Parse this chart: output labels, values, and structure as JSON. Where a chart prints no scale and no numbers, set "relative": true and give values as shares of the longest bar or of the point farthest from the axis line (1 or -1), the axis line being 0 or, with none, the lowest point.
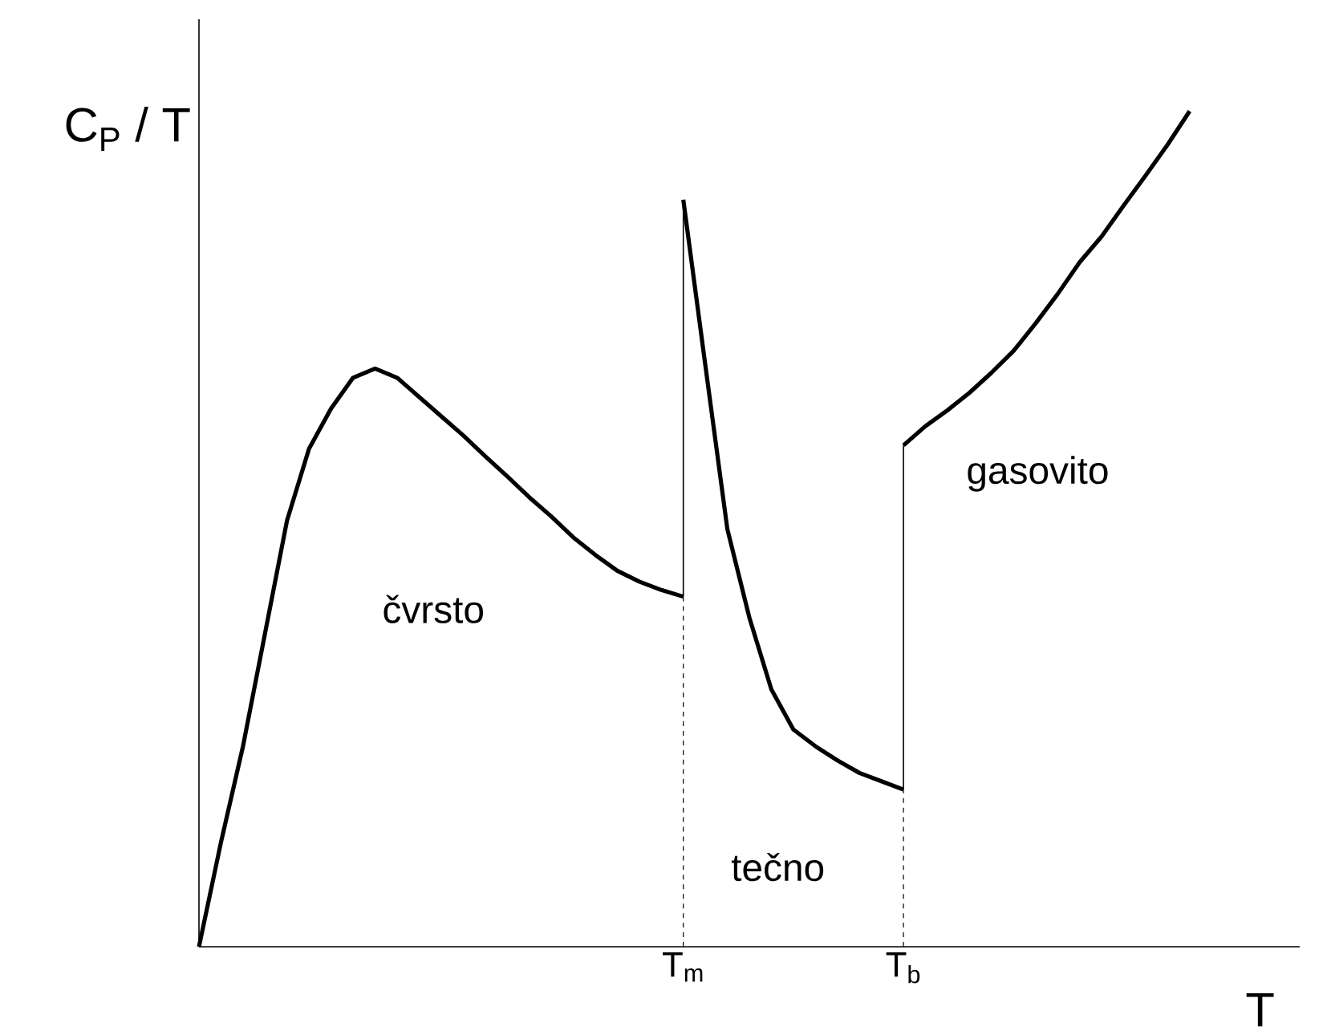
{
  "chart_data": {
    "type": "line",
    "relative": true,
    "ylabel": "C$_{P}$ / T",
    "xlabel": "T",
    "categories": [
      null,
      null,
      null,
      null,
      null,
      null,
      null,
      null,
      null,
      null,
      null,
      null,
      null,
      null,
      null,
      null,
      null,
      null,
      null,
      null,
      null,
      null,
      "T$_{m}$",
      null,
      null,
      null,
      null,
      null,
      null,
      null,
      null,
      null,
      "T$_{b}$",
      null,
      null,
      null,
      null,
      null,
      null,
      null,
      null,
      null,
      null,
      null,
      null,
      null,
      null,
      null,
      null,
      null,
      null
    ],
    "series": [
      {
        "color": "#000000",
        "values": [
          0,
          0.125,
          0.24,
          0.375,
          0.51,
          0.596,
          0.644,
          0.681,
          0.692,
          0.681,
          0.658,
          0.635,
          0.612,
          0.587,
          0.563,
          0.538,
          0.515,
          0.49,
          0.469,
          0.45,
          0.437,
          0.427,
          0.419,
          null,
          null,
          null,
          null,
          null,
          null,
          null,
          null,
          null,
          null,
          null,
          null,
          null,
          null,
          null,
          null,
          null,
          null,
          null,
          null,
          null,
          null,
          null,
          null,
          null,
          null,
          null,
          null
        ]
      },
      {
        "color": "#000000",
        "values": [
          null,
          null,
          null,
          null,
          null,
          null,
          null,
          null,
          null,
          null,
          null,
          null,
          null,
          null,
          null,
          null,
          null,
          null,
          null,
          null,
          null,
          null,
          0.894,
          0.696,
          0.5,
          0.394,
          0.308,
          0.26,
          0.24,
          0.223,
          0.208,
          0.198,
          0.188,
          null,
          null,
          null,
          null,
          null,
          null,
          null,
          null,
          null,
          null,
          null,
          null,
          null,
          null,
          null,
          null,
          null,
          null
        ]
      },
      {
        "color": "#000000",
        "values": [
          null,
          null,
          null,
          null,
          null,
          null,
          null,
          null,
          null,
          null,
          null,
          null,
          null,
          null,
          null,
          null,
          null,
          null,
          null,
          null,
          null,
          null,
          null,
          null,
          null,
          null,
          null,
          null,
          null,
          null,
          null,
          null,
          0.6,
          0.623,
          0.642,
          0.663,
          0.687,
          0.713,
          0.746,
          0.781,
          0.819,
          0.85,
          0.887,
          0.923,
          0.96,
          1,
          null,
          null,
          null,
          null,
          null
        ]
      },
      {
        "color": "#000000",
        "x": [
          "T$_{m}$",
          "T$_{m}$"
        ],
        "values": [
          0.419,
          0.894
        ]
      },
      {
        "color": "#000000",
        "x": [
          "T$_{b}$",
          "T$_{b}$"
        ],
        "values": [
          0.188,
          0.6
        ]
      }
    ],
    "ref_lines": [
      {
        "axis": "x",
        "value": "T$_{m}$",
        "line_style": "dashed"
      },
      {
        "axis": "x",
        "value": "T$_{b}$",
        "line_style": "dashed"
      }
    ],
    "annotations": [
      "čvrsto",
      "tečno",
      "gasovito"
    ],
    "marker": "none",
    "line_style": "solid"
  }
}
